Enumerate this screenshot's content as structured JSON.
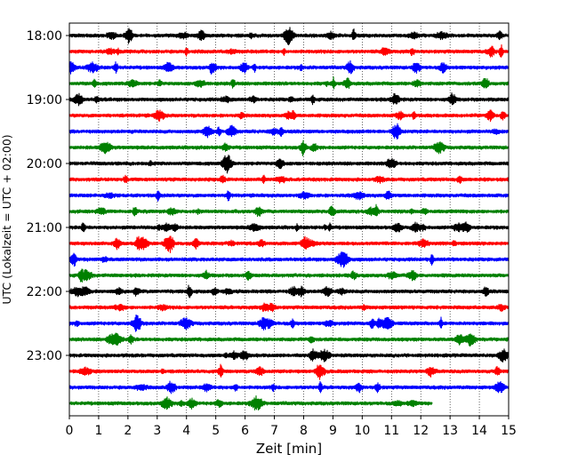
{
  "chart_data": {
    "type": "line",
    "title": "",
    "xlabel": "Zeit  [min]",
    "ylabel": "UTC (Lokalzeit = UTC + 02:00)",
    "xlim": [
      0,
      15
    ],
    "x_ticks": [
      0,
      1,
      2,
      3,
      4,
      5,
      6,
      7,
      8,
      9,
      10,
      11,
      12,
      13,
      14,
      15
    ],
    "y_ticks": [
      "18:00",
      "19:00",
      "20:00",
      "21:00",
      "22:00",
      "23:00"
    ],
    "grid": "vertical dotted",
    "color_cycle": [
      "#000000",
      "#ff0000",
      "#0000ff",
      "#008000"
    ],
    "traces": [
      {
        "start": "18:00",
        "end_min": 15
      },
      {
        "start": "18:15",
        "end_min": 15
      },
      {
        "start": "18:30",
        "end_min": 15
      },
      {
        "start": "18:45",
        "end_min": 15
      },
      {
        "start": "19:00",
        "end_min": 15
      },
      {
        "start": "19:15",
        "end_min": 15
      },
      {
        "start": "19:30",
        "end_min": 15
      },
      {
        "start": "19:45",
        "end_min": 15
      },
      {
        "start": "20:00",
        "end_min": 15
      },
      {
        "start": "20:15",
        "end_min": 15
      },
      {
        "start": "20:30",
        "end_min": 15
      },
      {
        "start": "20:45",
        "end_min": 15
      },
      {
        "start": "21:00",
        "end_min": 15
      },
      {
        "start": "21:15",
        "end_min": 15
      },
      {
        "start": "21:30",
        "end_min": 15
      },
      {
        "start": "21:45",
        "end_min": 15
      },
      {
        "start": "22:00",
        "end_min": 15
      },
      {
        "start": "22:15",
        "end_min": 15
      },
      {
        "start": "22:30",
        "end_min": 15
      },
      {
        "start": "22:45",
        "end_min": 15
      },
      {
        "start": "23:00",
        "end_min": 15
      },
      {
        "start": "23:15",
        "end_min": 15
      },
      {
        "start": "23:30",
        "end_min": 15
      },
      {
        "start": "23:45",
        "end_min": 12.4
      }
    ]
  }
}
